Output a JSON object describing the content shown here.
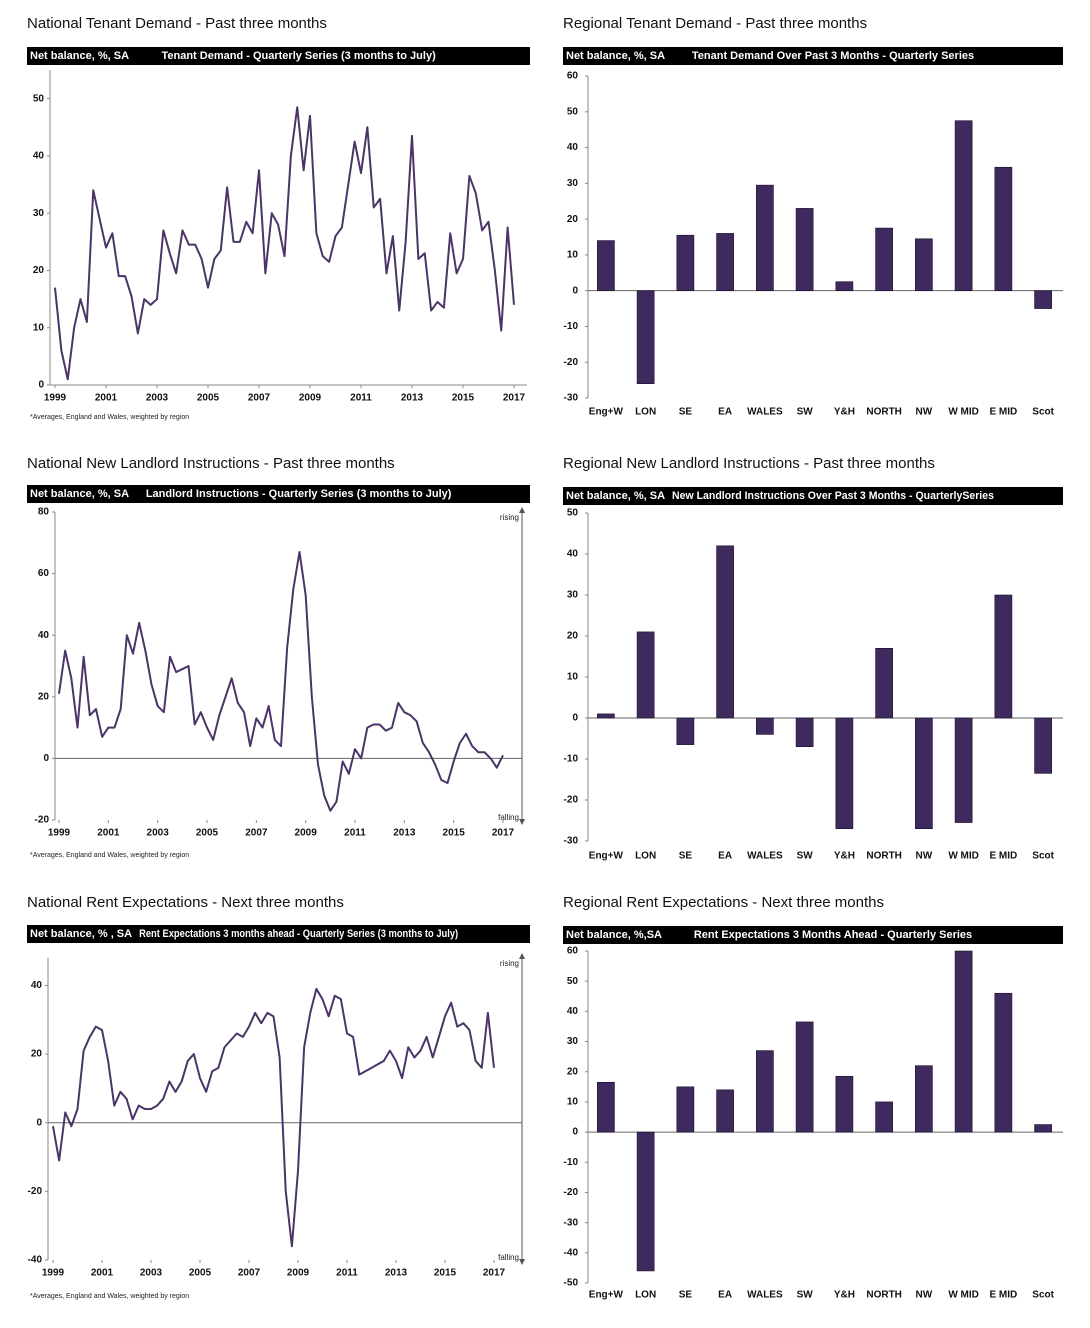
{
  "chart_data": [
    {
      "type": "line",
      "title": "National Tenant Demand - Past three months",
      "unit_label": "Net balance, %, SA",
      "subtitle": "Tenant Demand - Quarterly Series (3 months to July)",
      "note": "*Averages, England and Wales, weighted by region",
      "color": "#4b3468",
      "xlim": [
        1999,
        2017
      ],
      "xticks": [
        1999,
        2001,
        2003,
        2005,
        2007,
        2009,
        2011,
        2013,
        2015,
        2017
      ],
      "ylim": [
        0,
        55
      ],
      "yticks": [
        0,
        10,
        20,
        30,
        40,
        50
      ],
      "x": [
        1999,
        1999.25,
        1999.5,
        1999.75,
        2000,
        2000.25,
        2000.5,
        2000.75,
        2001,
        2001.25,
        2001.5,
        2001.75,
        2002,
        2002.25,
        2002.5,
        2002.75,
        2003,
        2003.25,
        2003.5,
        2003.75,
        2004,
        2004.25,
        2004.5,
        2004.75,
        2005,
        2005.25,
        2005.5,
        2005.75,
        2006,
        2006.25,
        2006.5,
        2006.75,
        2007,
        2007.25,
        2007.5,
        2007.75,
        2008,
        2008.25,
        2008.5,
        2008.75,
        2009,
        2009.25,
        2009.5,
        2009.75,
        2010,
        2010.25,
        2010.5,
        2010.75,
        2011,
        2011.25,
        2011.5,
        2011.75,
        2012,
        2012.25,
        2012.5,
        2012.75,
        2013,
        2013.25,
        2013.5,
        2013.75,
        2014,
        2014.25,
        2014.5,
        2014.75,
        2015,
        2015.25,
        2015.5,
        2015.75,
        2016,
        2016.25,
        2016.5,
        2016.75,
        2017
      ],
      "values": [
        17,
        6,
        1,
        10,
        15,
        11,
        34,
        29,
        24,
        26.5,
        19,
        19,
        15.5,
        9,
        15,
        14,
        15,
        27,
        23,
        19.5,
        27,
        24.5,
        24.5,
        22,
        17,
        22,
        23.5,
        34.5,
        25,
        25,
        28.5,
        26.5,
        37.5,
        19.5,
        30,
        28,
        22.5,
        40,
        48.5,
        37.5,
        47,
        26.5,
        22.5,
        21.5,
        26,
        27.5,
        35,
        42.5,
        37,
        45,
        31,
        32.5,
        19.5,
        26,
        13,
        25,
        43.5,
        22,
        23,
        13,
        14.5,
        13.5,
        26.5,
        19.5,
        22,
        36.5,
        33.5,
        27,
        28.5,
        20,
        9.5,
        27.5,
        14
      ]
    },
    {
      "type": "bar",
      "title": "Regional Tenant Demand - Past three months",
      "unit_label": "Net balance, %, SA",
      "subtitle": "Tenant Demand Over Past 3 Months - Quarterly Series",
      "color": "#3e2a5e",
      "ylim": [
        -30,
        60
      ],
      "yticks": [
        -30,
        -20,
        -10,
        0,
        10,
        20,
        30,
        40,
        50,
        60
      ],
      "categories": [
        "Eng+W",
        "LON",
        "SE",
        "EA",
        "WALES",
        "SW",
        "Y&H",
        "NORTH",
        "NW",
        "W MID",
        "E MID",
        "Scot"
      ],
      "values": [
        14,
        -26,
        15.5,
        16,
        29.5,
        23,
        2.5,
        17.5,
        14.5,
        47.5,
        34.5,
        -5
      ]
    },
    {
      "type": "line",
      "title": "National New Landlord Instructions - Past three months",
      "unit_label": "Net balance, %, SA",
      "subtitle": "Landlord Instructions - Quarterly Series (3 months to July)",
      "note": "*Averages, England and Wales, weighted by region",
      "annotations": [
        "rising",
        "falling"
      ],
      "color": "#4b3468",
      "xlim": [
        1999,
        2017
      ],
      "xticks": [
        1999,
        2001,
        2003,
        2005,
        2007,
        2009,
        2011,
        2013,
        2015,
        2017
      ],
      "ylim": [
        -20,
        80
      ],
      "yticks": [
        -20,
        0,
        20,
        40,
        60,
        80
      ],
      "x": [
        1999,
        1999.25,
        1999.5,
        1999.75,
        2000,
        2000.25,
        2000.5,
        2000.75,
        2001,
        2001.25,
        2001.5,
        2001.75,
        2002,
        2002.25,
        2002.5,
        2002.75,
        2003,
        2003.25,
        2003.5,
        2003.75,
        2004,
        2004.25,
        2004.5,
        2004.75,
        2005,
        2005.25,
        2005.5,
        2005.75,
        2006,
        2006.25,
        2006.5,
        2006.75,
        2007,
        2007.25,
        2007.5,
        2007.75,
        2008,
        2008.25,
        2008.5,
        2008.75,
        2009,
        2009.25,
        2009.5,
        2009.75,
        2010,
        2010.25,
        2010.5,
        2010.75,
        2011,
        2011.25,
        2011.5,
        2011.75,
        2012,
        2012.25,
        2012.5,
        2012.75,
        2013,
        2013.25,
        2013.5,
        2013.75,
        2014,
        2014.25,
        2014.5,
        2014.75,
        2015,
        2015.25,
        2015.5,
        2015.75,
        2016,
        2016.25,
        2016.5,
        2016.75,
        2017
      ],
      "values": [
        21,
        35,
        26,
        10,
        33,
        14,
        16,
        7,
        10,
        10,
        16,
        40,
        34,
        44,
        35,
        24,
        17,
        15,
        33,
        28,
        29,
        30,
        11,
        15,
        10,
        6,
        14,
        20,
        26,
        18,
        15,
        4,
        13,
        10,
        17,
        6,
        4,
        36,
        55,
        67,
        53,
        20,
        -2,
        -12,
        -17,
        -14,
        -1,
        -5,
        3,
        0,
        10,
        11,
        11,
        9,
        10,
        18,
        15,
        14,
        12,
        5,
        2,
        -2,
        -7,
        -8,
        -1,
        5,
        8,
        4,
        2,
        2,
        0,
        -3,
        1
      ]
    },
    {
      "type": "bar",
      "title": "Regional New Landlord Instructions - Past three months",
      "unit_label": "Net balance, %, SA",
      "subtitle": "New Landlord Instructions Over Past 3 Months - QuarterlySeries",
      "color": "#3e2a5e",
      "ylim": [
        -30,
        50
      ],
      "yticks": [
        -30,
        -20,
        -10,
        0,
        10,
        20,
        30,
        40,
        50
      ],
      "categories": [
        "Eng+W",
        "LON",
        "SE",
        "EA",
        "WALES",
        "SW",
        "Y&H",
        "NORTH",
        "NW",
        "W MID",
        "E MID",
        "Scot"
      ],
      "values": [
        1,
        21,
        -6.5,
        42,
        -4,
        -7,
        -27,
        17,
        -27,
        -25.5,
        30,
        -13.5
      ]
    },
    {
      "type": "line",
      "title": "National Rent Expectations - Next three months",
      "unit_label": "Net balance, % , SA",
      "subtitle": "Rent Expectations 3 months ahead - Quarterly Series (3 months to July)",
      "note": "*Averages, England and Wales, weighted by region",
      "annotations": [
        "rising",
        "falling"
      ],
      "color": "#4b3468",
      "xlim": [
        1999,
        2017
      ],
      "xticks": [
        1999,
        2001,
        2003,
        2005,
        2007,
        2009,
        2011,
        2013,
        2015,
        2017
      ],
      "ylim": [
        -40,
        48
      ],
      "yticks": [
        -40,
        -20,
        0,
        20,
        40
      ],
      "x": [
        1999,
        1999.25,
        1999.5,
        1999.75,
        2000,
        2000.25,
        2000.5,
        2000.75,
        2001,
        2001.25,
        2001.5,
        2001.75,
        2002,
        2002.25,
        2002.5,
        2002.75,
        2003,
        2003.25,
        2003.5,
        2003.75,
        2004,
        2004.25,
        2004.5,
        2004.75,
        2005,
        2005.25,
        2005.5,
        2005.75,
        2006,
        2006.25,
        2006.5,
        2006.75,
        2007,
        2007.25,
        2007.5,
        2007.75,
        2008,
        2008.25,
        2008.5,
        2008.75,
        2009,
        2009.25,
        2009.5,
        2009.75,
        2010,
        2010.25,
        2010.5,
        2010.75,
        2011,
        2011.25,
        2011.5,
        2011.75,
        2012,
        2012.25,
        2012.5,
        2012.75,
        2013,
        2013.25,
        2013.5,
        2013.75,
        2014,
        2014.25,
        2014.5,
        2014.75,
        2015,
        2015.25,
        2015.5,
        2015.75,
        2016,
        2016.25,
        2016.5,
        2016.75,
        2017
      ],
      "values": [
        -1,
        -11,
        3,
        -1,
        4,
        21,
        25,
        28,
        27,
        18,
        5,
        9,
        7,
        1,
        5,
        4,
        4,
        5,
        7,
        12,
        9,
        12,
        18,
        20,
        13,
        9,
        15,
        16,
        22,
        24,
        26,
        25,
        28,
        32,
        29,
        32,
        31,
        19,
        -20,
        -36,
        -14,
        22,
        32,
        39,
        36,
        31,
        37,
        36,
        26,
        25,
        14,
        15,
        16,
        17,
        18,
        21,
        18,
        13,
        22,
        19,
        21,
        25,
        19,
        25,
        31,
        35,
        28,
        29,
        27,
        18,
        16,
        32,
        16
      ]
    },
    {
      "type": "bar",
      "title": "Regional Rent Expectations - Next three months",
      "unit_label": "Net balance, %,SA",
      "subtitle": "Rent Expectations 3 Months Ahead - Quarterly Series",
      "color": "#3e2a5e",
      "ylim": [
        -50,
        60
      ],
      "yticks": [
        -50,
        -40,
        -30,
        -20,
        -10,
        0,
        10,
        20,
        30,
        40,
        50,
        60
      ],
      "categories": [
        "Eng+W",
        "LON",
        "SE",
        "EA",
        "WALES",
        "SW",
        "Y&H",
        "NORTH",
        "NW",
        "W MID",
        "E MID",
        "Scot"
      ],
      "values": [
        16.5,
        -46,
        15,
        14,
        27,
        36.5,
        18.5,
        10,
        22,
        60,
        46,
        2.5
      ]
    }
  ]
}
